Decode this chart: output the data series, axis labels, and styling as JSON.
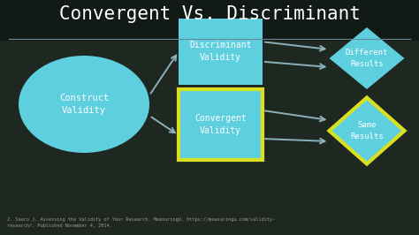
{
  "title": "Convergent Vs. Discriminant",
  "title_fontsize": 15,
  "title_color": "white",
  "bg_color": "#1e2820",
  "cyan_color": "#5ecfdf",
  "yellow_color": "#d8e020",
  "arrow_color": "#8ab0bb",
  "text_color": "white",
  "footnote": "2. Sauro J. Assessing the Validity of Your Research. MeasuringU. https://measuringu.com/validity-\nresearch/. Published November 4, 2014.",
  "construct_validity_label": "Construct\nValidity",
  "convergent_validity_label": "Convergent\nValidity",
  "discriminant_validity_label": "Discriminant\nValidity",
  "same_results_label": "Same\nResults",
  "different_results_label": "Different\nResults",
  "separator_color": "#6a8a99",
  "chalkboard_lines": true
}
